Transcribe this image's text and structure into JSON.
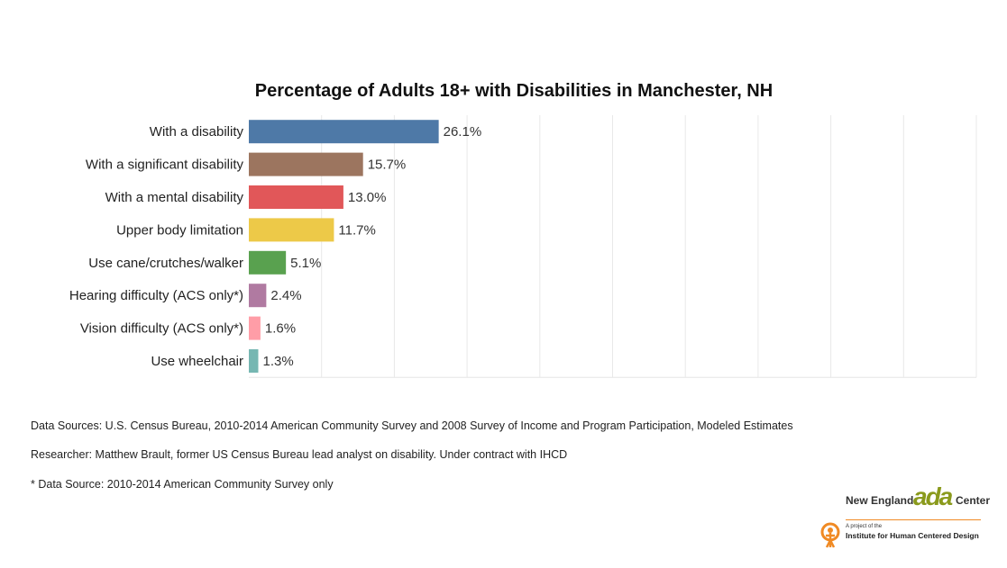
{
  "title": "Percentage of Adults 18+ with Disabilities in Manchester, NH",
  "chart_data": {
    "type": "bar",
    "orientation": "horizontal",
    "title": "Percentage of Adults 18+ with Disabilities in Manchester, NH",
    "xlim": [
      0,
      100
    ],
    "grid": true,
    "categories": [
      "With a disability",
      "With a significant disability",
      "With a mental disability",
      "Upper body limitation",
      "Use cane/crutches/walker",
      "Hearing difficulty (ACS only*)",
      "Vision difficulty (ACS only*)",
      "Use wheelchair"
    ],
    "values": [
      26.1,
      15.7,
      13.0,
      11.7,
      5.1,
      2.4,
      1.6,
      1.3
    ],
    "labels": [
      "26.1%",
      "15.7%",
      "13.0%",
      "11.7%",
      "5.1%",
      "2.4%",
      "1.6%",
      "1.3%"
    ],
    "colors": [
      "#4e79a7",
      "#9c755f",
      "#e15759",
      "#edc948",
      "#59a14f",
      "#b07aa1",
      "#ff9da7",
      "#76b7b2"
    ]
  },
  "notes": {
    "sources": "Data Sources: U.S. Census Bureau, 2010-2014 American Community Survey and 2008 Survey of Income and Program Participation, Modeled Estimates",
    "researcher": "Researcher: Matthew Brault, former US Census Bureau lead analyst on disability. Under contract with IHCD",
    "footnote": "* Data Source: 2010-2014 American Community Survey only"
  },
  "logo": {
    "new_england": "New England",
    "ada": "ada",
    "center": "Center",
    "project": "A project of the",
    "ihcd": "Institute for Human Centered Design",
    "accent": "#f08a24",
    "ada_color": "#8a9a1c"
  }
}
